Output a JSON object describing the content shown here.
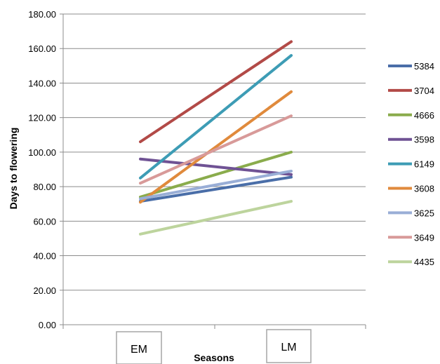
{
  "chart_data": {
    "type": "line",
    "xlabel": "Seasons",
    "ylabel": "Days to flowering",
    "categories": [
      "EM",
      "LM"
    ],
    "ylim": [
      0,
      180
    ],
    "yticks": [
      "0.00",
      "20.00",
      "40.00",
      "60.00",
      "80.00",
      "100.00",
      "120.00",
      "140.00",
      "160.00",
      "180.00"
    ],
    "grid": true,
    "legend_position": "right",
    "series": [
      {
        "name": "5384",
        "color": "#4a6ea8",
        "values": [
          71.5,
          85.5
        ]
      },
      {
        "name": "3704",
        "color": "#b24a47",
        "values": [
          106,
          164
        ]
      },
      {
        "name": "4666",
        "color": "#8aac4c",
        "values": [
          74,
          100
        ]
      },
      {
        "name": "3598",
        "color": "#6f5294",
        "values": [
          96,
          87
        ]
      },
      {
        "name": "6149",
        "color": "#3d9cb5",
        "values": [
          85,
          156
        ]
      },
      {
        "name": "3608",
        "color": "#e08a3c",
        "values": [
          71,
          135
        ]
      },
      {
        "name": "3625",
        "color": "#99aed6",
        "values": [
          73,
          89
        ]
      },
      {
        "name": "3649",
        "color": "#d89a99",
        "values": [
          82,
          121
        ]
      },
      {
        "name": "4435",
        "color": "#bdd49d",
        "values": [
          52.5,
          71.5
        ]
      }
    ]
  }
}
